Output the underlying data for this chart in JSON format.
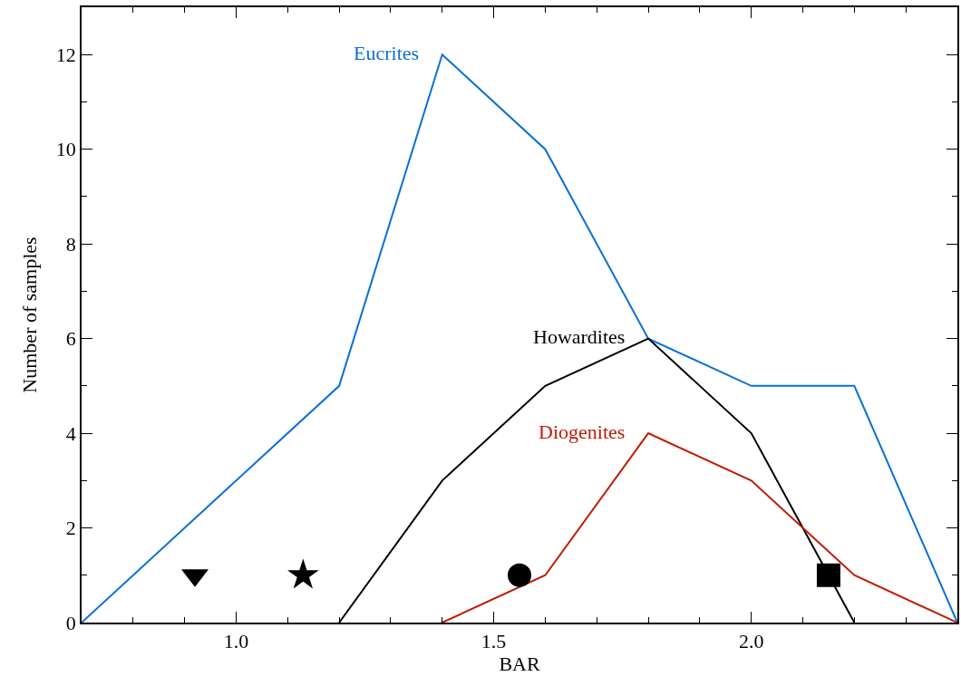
{
  "chart_data": {
    "type": "line",
    "xlabel": "BAR",
    "ylabel": "Number of samples",
    "xlim": [
      0.7,
      2.4
    ],
    "ylim": [
      0,
      13
    ],
    "xticks": [
      {
        "value": 1.0,
        "label": "1.0"
      },
      {
        "value": 1.5,
        "label": "1.5"
      },
      {
        "value": 2.0,
        "label": "2.0"
      }
    ],
    "yticks": [
      0,
      2,
      4,
      6,
      8,
      10,
      12
    ],
    "legend": false,
    "marker": "none",
    "line_style": "solid",
    "series": [
      {
        "name": "Eucrites",
        "color": "#0a6fd6",
        "x": [
          0.7,
          1.2,
          1.4,
          1.6,
          1.8,
          2.0,
          2.2,
          2.4
        ],
        "values": [
          0,
          5,
          12,
          10,
          6,
          5,
          5,
          0
        ]
      },
      {
        "name": "Howardites",
        "color": "#000000",
        "x": [
          1.2,
          1.4,
          1.6,
          1.8,
          2.0,
          2.2
        ],
        "values": [
          0,
          3,
          5,
          6,
          4,
          0
        ]
      },
      {
        "name": "Diogenites",
        "color": "#c01a00",
        "x": [
          1.4,
          1.6,
          1.8,
          2.0,
          2.2,
          2.4
        ],
        "values": [
          0,
          1,
          4,
          3,
          1,
          0
        ]
      },
      {
        "type": "scatter",
        "marker": "triangle",
        "color": "#000000",
        "x": [
          0.92
        ],
        "values": [
          1
        ]
      },
      {
        "type": "scatter",
        "marker": "star",
        "color": "#000000",
        "x": [
          1.13
        ],
        "values": [
          1
        ]
      },
      {
        "type": "scatter",
        "marker": "circle",
        "color": "#000000",
        "x": [
          1.55
        ],
        "values": [
          1
        ]
      },
      {
        "type": "scatter",
        "marker": "square",
        "color": "#000000",
        "x": [
          2.15
        ],
        "values": [
          1
        ]
      }
    ]
  }
}
